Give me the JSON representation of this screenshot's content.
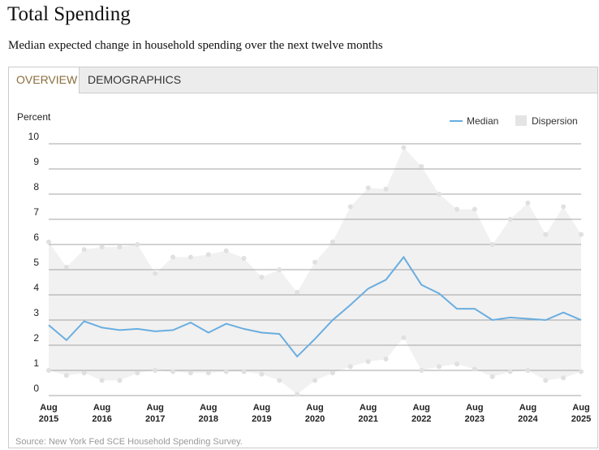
{
  "header": {
    "title": "Total Spending",
    "subtitle": "Median expected change in household spending over the next twelve months"
  },
  "tabs": [
    {
      "label": "OVERVIEW",
      "active": true
    },
    {
      "label": "DEMOGRAPHICS",
      "active": false
    }
  ],
  "source": "Source: New York Fed SCE Household Spending Survey.",
  "colors": {
    "median": "#6aaee0",
    "dispersion": "#f1f1f1",
    "dispersion_point": "#e0e0e0",
    "active_tab": "#8a6d3b"
  },
  "chart_data": {
    "type": "area",
    "ylabel": "Percent",
    "ylim": [
      0,
      10
    ],
    "yticks": [
      "0",
      "1",
      "2",
      "3",
      "4",
      "5",
      "6",
      "7",
      "8",
      "9",
      "10"
    ],
    "grid": true,
    "legend_position": "top-right",
    "x_tick_labels": [
      {
        "month": "Aug",
        "year": "2015"
      },
      {
        "month": "Aug",
        "year": "2016"
      },
      {
        "month": "Aug",
        "year": "2017"
      },
      {
        "month": "Aug",
        "year": "2018"
      },
      {
        "month": "Aug",
        "year": "2019"
      },
      {
        "month": "Aug",
        "year": "2020"
      },
      {
        "month": "Aug",
        "year": "2021"
      },
      {
        "month": "Aug",
        "year": "2022"
      },
      {
        "month": "Aug",
        "year": "2023"
      },
      {
        "month": "Aug",
        "year": "2024"
      },
      {
        "month": "Aug",
        "year": "2025"
      }
    ],
    "x": [
      "2015-08",
      "2015-12",
      "2016-04",
      "2016-08",
      "2016-12",
      "2017-04",
      "2017-08",
      "2017-12",
      "2018-04",
      "2018-08",
      "2018-12",
      "2019-04",
      "2019-08",
      "2019-12",
      "2020-04",
      "2020-08",
      "2020-12",
      "2021-04",
      "2021-08",
      "2021-12",
      "2022-04",
      "2022-08",
      "2022-12",
      "2023-04",
      "2023-08",
      "2023-12",
      "2024-04",
      "2024-08",
      "2024-12",
      "2025-04",
      "2025-08"
    ],
    "series": [
      {
        "name": "Median",
        "values": [
          2.8,
          2.2,
          2.95,
          2.7,
          2.6,
          2.65,
          2.55,
          2.6,
          2.9,
          2.5,
          2.85,
          2.65,
          2.5,
          2.45,
          1.55,
          2.25,
          3.0,
          3.6,
          4.25,
          4.6,
          5.5,
          4.4,
          4.05,
          3.45,
          3.45,
          3.0,
          3.1,
          3.05,
          3.0,
          3.3,
          3.0
        ]
      },
      {
        "name": "Dispersion",
        "lower": [
          1.0,
          0.8,
          0.9,
          0.6,
          0.6,
          0.9,
          1.0,
          0.95,
          0.9,
          0.9,
          0.95,
          0.95,
          0.85,
          0.6,
          0.05,
          0.6,
          0.9,
          1.15,
          1.35,
          1.45,
          2.3,
          1.0,
          1.15,
          1.25,
          1.05,
          0.75,
          0.95,
          1.0,
          0.6,
          0.7,
          0.95
        ],
        "upper": [
          6.1,
          5.1,
          5.8,
          5.9,
          5.9,
          6.0,
          4.85,
          5.5,
          5.5,
          5.6,
          5.75,
          5.45,
          4.7,
          5.0,
          4.1,
          5.3,
          6.1,
          7.5,
          8.25,
          8.2,
          9.85,
          9.1,
          8.0,
          7.4,
          7.4,
          6.0,
          7.0,
          7.65,
          6.4,
          7.5,
          6.4
        ]
      }
    ]
  }
}
